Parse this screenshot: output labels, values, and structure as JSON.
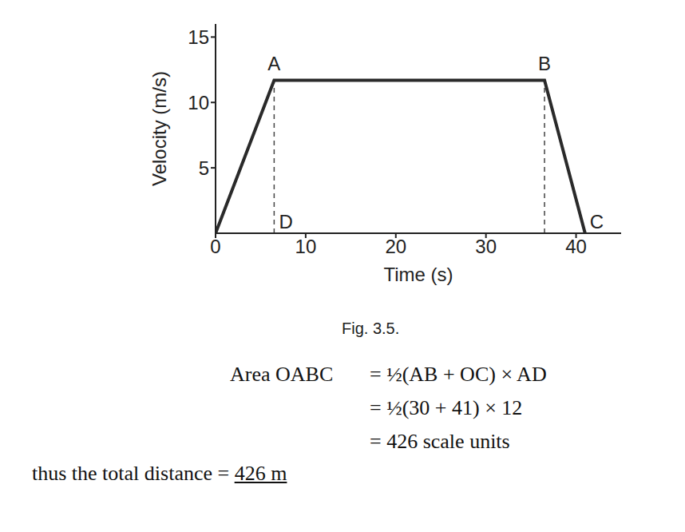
{
  "chart_data": {
    "type": "line",
    "x": [
      0,
      6.5,
      36.5,
      41
    ],
    "values": [
      0,
      11.7,
      11.7,
      0
    ],
    "color": "#2a2a2a",
    "x_label": "Time (s)",
    "y_label": "Velocity (m/s)",
    "xlim": [
      0,
      45
    ],
    "ylim": [
      0,
      16
    ],
    "xticks": [
      0,
      10,
      20,
      30,
      40
    ],
    "yticks": [
      5,
      10,
      15
    ],
    "grid": false,
    "annotations": [
      {
        "text": "A",
        "x": 6.5,
        "y": 11.7
      },
      {
        "text": "B",
        "x": 36.5,
        "y": 11.7
      },
      {
        "text": "C",
        "x": 41,
        "y": 0
      },
      {
        "text": "D",
        "x": 6.5,
        "y": 0
      }
    ]
  },
  "caption": "Fig. 3.5.",
  "work": {
    "label": "Area OABC",
    "steps": [
      "= ½(AB + OC) × AD",
      "= ½(30 + 41) × 12",
      "= 426 scale units"
    ]
  },
  "conclusion": {
    "text": "thus the total distance =",
    "result": "426 m"
  }
}
